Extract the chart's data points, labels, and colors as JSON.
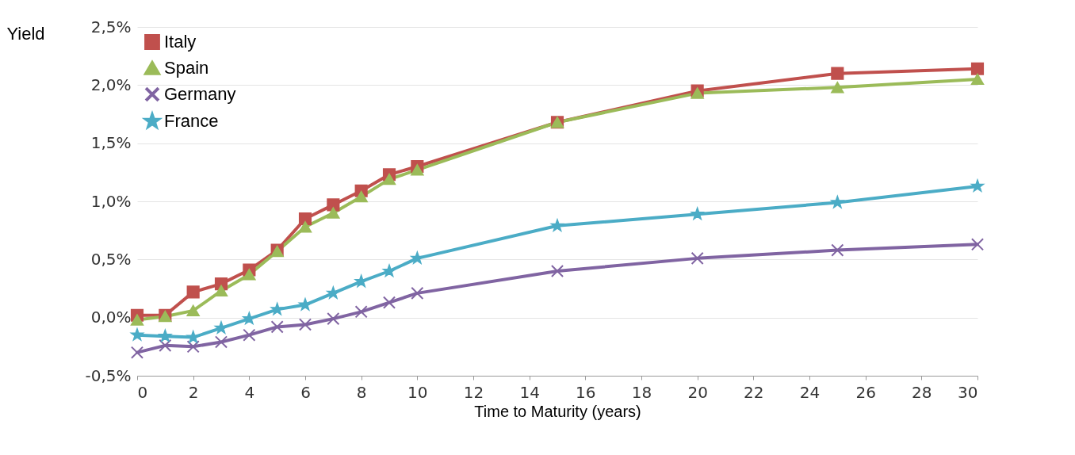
{
  "chart_data": {
    "type": "line",
    "ylabel": "Yield",
    "xlabel": "Time to Maturity (years)",
    "x": [
      0,
      1,
      2,
      3,
      4,
      5,
      6,
      7,
      8,
      9,
      10,
      15,
      20,
      25,
      30
    ],
    "xlim": [
      0,
      30
    ],
    "xticks": [
      0,
      2,
      4,
      6,
      8,
      10,
      12,
      14,
      16,
      18,
      20,
      22,
      24,
      26,
      28,
      30
    ],
    "ylim": [
      -0.5,
      2.5
    ],
    "yticks": [
      {
        "value": -0.5,
        "label": "-0,5%"
      },
      {
        "value": 0,
        "label": "0,0%"
      },
      {
        "value": 0.5,
        "label": "0,5%"
      },
      {
        "value": 1,
        "label": "1,0%"
      },
      {
        "value": 1.5,
        "label": "1,5%"
      },
      {
        "value": 2,
        "label": "2,0%"
      },
      {
        "value": 2.5,
        "label": "2,5%"
      }
    ],
    "grid": "y",
    "legend": "top left",
    "series": [
      {
        "name": "Italy",
        "color": "#c0504d",
        "marker": "square",
        "values": [
          0.02,
          0.02,
          0.22,
          0.29,
          0.41,
          0.58,
          0.85,
          0.97,
          1.09,
          1.23,
          1.3,
          1.68,
          1.95,
          2.1,
          2.14
        ]
      },
      {
        "name": "Spain",
        "color": "#9bbb59",
        "marker": "triangle",
        "values": [
          -0.02,
          0.01,
          0.06,
          0.23,
          0.37,
          0.57,
          0.78,
          0.9,
          1.04,
          1.19,
          1.27,
          1.68,
          1.93,
          1.98,
          2.05
        ]
      },
      {
        "name": "Germany",
        "color": "#8064a2",
        "marker": "cross",
        "values": [
          -0.3,
          -0.24,
          -0.25,
          -0.21,
          -0.15,
          -0.08,
          -0.06,
          -0.01,
          0.05,
          0.13,
          0.21,
          0.4,
          0.51,
          0.58,
          0.63
        ]
      },
      {
        "name": "France",
        "color": "#4bacc6",
        "marker": "star",
        "values": [
          -0.15,
          -0.16,
          -0.17,
          -0.09,
          -0.01,
          0.07,
          0.11,
          0.21,
          0.31,
          0.4,
          0.51,
          0.79,
          0.89,
          0.99,
          1.13
        ]
      }
    ]
  }
}
